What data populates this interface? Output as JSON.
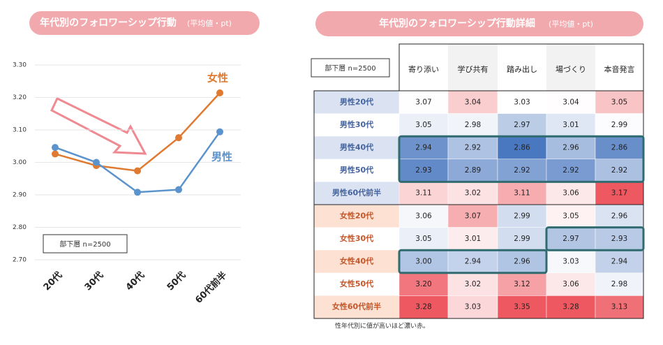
{
  "chart_data": {
    "type": "line",
    "title": "年代別のフォロワーシップ行動",
    "subtitle": "(平均値・pt)",
    "categories": [
      "20代",
      "30代",
      "40代",
      "50代",
      "60代前半"
    ],
    "series": [
      {
        "name": "女性",
        "color": "#e07a30",
        "values": [
          3.026,
          2.99,
          2.974,
          3.076,
          3.214
        ]
      },
      {
        "name": "男性",
        "color": "#5b93cc",
        "values": [
          3.046,
          3.0,
          2.908,
          2.916,
          3.094
        ]
      }
    ],
    "ylim": [
      2.7,
      3.3
    ],
    "yticks": [
      {
        "value": 2.7,
        "label": "2.70"
      },
      {
        "value": 2.8,
        "label": "2.80"
      },
      {
        "value": 2.9,
        "label": "2.90"
      },
      {
        "value": 3.0,
        "label": "3.00"
      },
      {
        "value": 3.1,
        "label": "3.10"
      },
      {
        "value": 3.2,
        "label": "3.20"
      },
      {
        "value": 3.3,
        "label": "3.30"
      }
    ],
    "grid": true,
    "annotation": "部下層 n=2500"
  },
  "table": {
    "title": "年代別のフォロワーシップ行動詳細",
    "subtitle": "(平均値・pt)",
    "corner_note": "部下層 n=2500",
    "columns": [
      "寄り添い",
      "学び共有",
      "踏み出し",
      "場づくり",
      "本音発言"
    ],
    "rows": [
      {
        "label": "男性20代",
        "values": [
          "3.07",
          "3.04",
          "3.03",
          "3.04",
          "3.05"
        ]
      },
      {
        "label": "男性30代",
        "values": [
          "3.05",
          "2.98",
          "2.97",
          "3.01",
          "2.99"
        ]
      },
      {
        "label": "男性40代",
        "values": [
          "2.94",
          "2.92",
          "2.86",
          "2.96",
          "2.86"
        ]
      },
      {
        "label": "男性50代",
        "values": [
          "2.93",
          "2.89",
          "2.92",
          "2.92",
          "2.92"
        ]
      },
      {
        "label": "男性60代前半",
        "values": [
          "3.11",
          "3.02",
          "3.11",
          "3.06",
          "3.17"
        ]
      },
      {
        "label": "女性20代",
        "values": [
          "3.06",
          "3.07",
          "2.99",
          "3.05",
          "2.96"
        ]
      },
      {
        "label": "女性30代",
        "values": [
          "3.05",
          "3.01",
          "2.99",
          "2.97",
          "2.93"
        ]
      },
      {
        "label": "女性40代",
        "values": [
          "3.00",
          "2.94",
          "2.96",
          "3.03",
          "2.94"
        ]
      },
      {
        "label": "女性50代",
        "values": [
          "3.20",
          "3.02",
          "3.12",
          "3.06",
          "2.98"
        ]
      },
      {
        "label": "女性60代前半",
        "values": [
          "3.28",
          "3.03",
          "3.35",
          "3.28",
          "3.13"
        ]
      }
    ],
    "footnote": "性年代別に値が高いほど濃い赤。"
  }
}
